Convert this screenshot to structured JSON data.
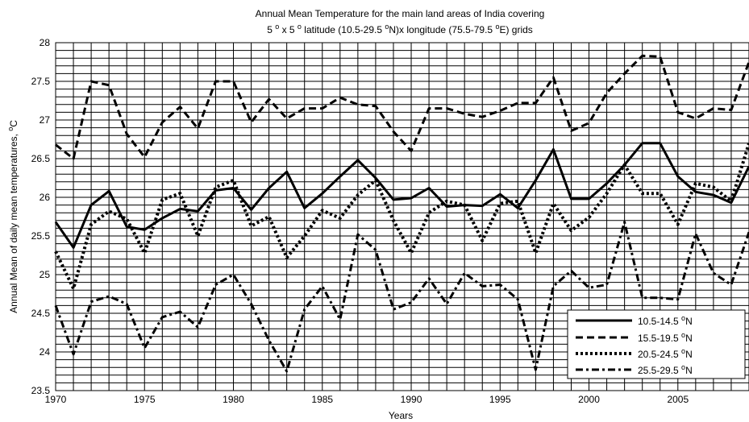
{
  "chart_data": {
    "type": "line",
    "title": "Annual Mean Temperature for the main land areas of India covering",
    "subtitle": {
      "a": "5 ",
      "b": "o",
      "c": " x 5 ",
      "d": "o",
      "e": " latitude (10.5-29.5 ",
      "f": "o",
      "g": "N)x longitude (75.5-79.5 ",
      "h": "o",
      "i": "E) grids"
    },
    "xlabel": "Years",
    "ylabel": {
      "main": "Annual Mean of daily mean temperatures, ",
      "sup": "o",
      "unit": "C"
    },
    "xlim": [
      1970,
      2009
    ],
    "ylim": [
      23.5,
      28
    ],
    "x_ticks": [
      1970,
      1975,
      1980,
      1985,
      1990,
      1995,
      2000,
      2005
    ],
    "y_ticks": [
      "23.5",
      "24",
      "24.5",
      "25",
      "25.5",
      "26",
      "26.5",
      "27",
      "27.5",
      "28"
    ],
    "grid": true,
    "legend_position": "bottom-right",
    "reference_line": {
      "y": 26.5,
      "style": "dotted"
    },
    "x": [
      1970,
      1971,
      1972,
      1973,
      1974,
      1975,
      1976,
      1977,
      1978,
      1979,
      1980,
      1981,
      1982,
      1983,
      1984,
      1985,
      1986,
      1987,
      1988,
      1989,
      1990,
      1991,
      1992,
      1993,
      1994,
      1995,
      1996,
      1997,
      1998,
      1999,
      2000,
      2001,
      2002,
      2003,
      2004,
      2005,
      2006,
      2007,
      2008,
      2009
    ],
    "series": [
      {
        "name": "10.5-14.5 ",
        "name_sup": "o",
        "name_suffix": "N",
        "style": "solid",
        "values": [
          25.68,
          25.35,
          25.9,
          26.08,
          25.62,
          25.58,
          25.73,
          25.85,
          25.82,
          26.09,
          26.12,
          25.84,
          26.12,
          26.33,
          25.86,
          26.05,
          26.27,
          26.48,
          26.25,
          25.97,
          25.99,
          26.12,
          25.88,
          25.9,
          25.89,
          26.04,
          25.86,
          26.22,
          26.62,
          25.98,
          25.98,
          26.18,
          26.42,
          26.7,
          26.7,
          26.27,
          26.07,
          26.03,
          25.93,
          26.4
        ]
      },
      {
        "name": "15.5-19.5 ",
        "name_sup": "o",
        "name_suffix": "N",
        "style": "dashed",
        "values": [
          26.68,
          26.5,
          27.5,
          27.45,
          26.82,
          26.52,
          26.97,
          27.17,
          26.89,
          27.5,
          27.5,
          26.97,
          27.27,
          27.02,
          27.15,
          27.15,
          27.29,
          27.2,
          27.18,
          26.85,
          26.6,
          27.15,
          27.15,
          27.08,
          27.04,
          27.12,
          27.22,
          27.22,
          27.55,
          26.86,
          26.96,
          27.35,
          27.6,
          27.83,
          27.82,
          27.1,
          27.02,
          27.15,
          27.13,
          27.75
        ]
      },
      {
        "name": "20.5-24.5 ",
        "name_sup": "o",
        "name_suffix": "N",
        "style": "dotted",
        "values": [
          25.3,
          24.82,
          25.65,
          25.82,
          25.72,
          25.28,
          25.97,
          26.05,
          25.5,
          26.13,
          26.22,
          25.63,
          25.75,
          25.22,
          25.5,
          25.83,
          25.73,
          26.03,
          26.22,
          25.7,
          25.28,
          25.8,
          25.95,
          25.9,
          25.44,
          25.92,
          25.95,
          25.28,
          25.92,
          25.57,
          25.74,
          26.05,
          26.42,
          26.05,
          26.05,
          25.65,
          26.18,
          26.13,
          25.95,
          26.7
        ]
      },
      {
        "name": "25.5-29.5 ",
        "name_sup": "o",
        "name_suffix": "N",
        "style": "dashdot",
        "values": [
          24.6,
          23.97,
          24.65,
          24.72,
          24.62,
          24.05,
          24.45,
          24.52,
          24.32,
          24.87,
          25.0,
          24.62,
          24.15,
          23.75,
          24.55,
          24.85,
          24.42,
          25.52,
          25.32,
          24.55,
          24.64,
          24.95,
          24.62,
          25.02,
          24.85,
          24.87,
          24.68,
          23.77,
          24.85,
          25.05,
          24.83,
          24.87,
          25.68,
          24.7,
          24.7,
          24.68,
          25.53,
          25.02,
          24.87,
          25.55
        ]
      }
    ]
  }
}
